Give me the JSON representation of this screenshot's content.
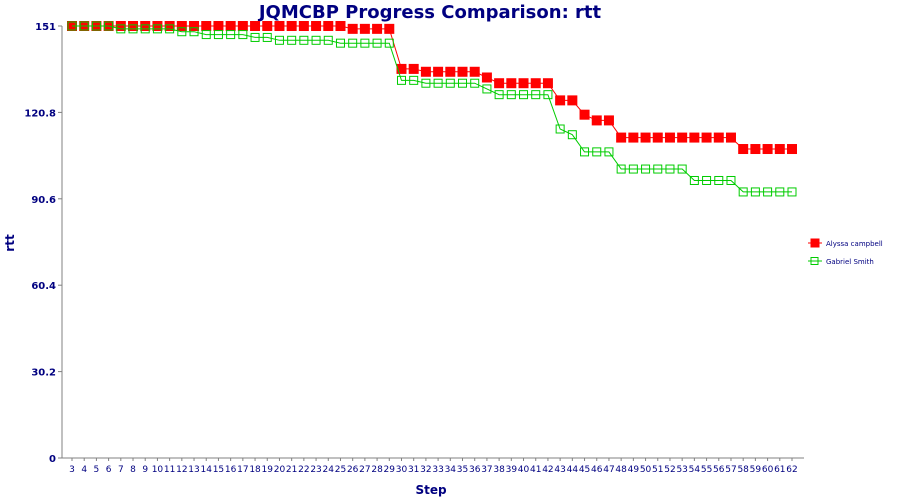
{
  "chart_data": {
    "type": "line",
    "title": "JQMCBP Progress Comparison: rtt",
    "xlabel": "Step",
    "ylabel": "rtt",
    "ylim": [
      0,
      151
    ],
    "yticks": [
      "0",
      "30.2",
      "60.4",
      "90.6",
      "120.8",
      "151"
    ],
    "x": [
      3,
      4,
      5,
      6,
      7,
      8,
      9,
      10,
      11,
      12,
      13,
      14,
      15,
      16,
      17,
      18,
      19,
      20,
      21,
      22,
      23,
      24,
      25,
      26,
      27,
      28,
      29,
      30,
      31,
      32,
      33,
      34,
      35,
      36,
      37,
      38,
      39,
      40,
      41,
      42,
      43,
      44,
      45,
      46,
      47,
      48,
      49,
      50,
      51,
      52,
      53,
      54,
      55,
      56,
      57,
      58,
      59,
      60,
      61,
      62
    ],
    "legend_position": "right",
    "grid": false,
    "series": [
      {
        "name": "Alyssa campbell",
        "color": "#ff0000",
        "marker": "filled-square",
        "values": [
          151,
          151,
          151,
          151,
          151,
          151,
          151,
          151,
          151,
          151,
          151,
          151,
          151,
          151,
          151,
          151,
          151,
          151,
          151,
          151,
          151,
          151,
          151,
          150,
          150,
          150,
          150,
          136,
          136,
          135,
          135,
          135,
          135,
          135,
          133,
          131,
          131,
          131,
          131,
          131,
          125,
          125,
          120,
          118,
          118,
          112,
          112,
          112,
          112,
          112,
          112,
          112,
          112,
          112,
          112,
          108,
          108,
          108,
          108,
          108
        ]
      },
      {
        "name": "Gabriel Smith",
        "color": "#00cc00",
        "marker": "hollow-square",
        "values": [
          151,
          151,
          151,
          151,
          150,
          150,
          150,
          150,
          150,
          149,
          149,
          148,
          148,
          148,
          148,
          147,
          147,
          146,
          146,
          146,
          146,
          146,
          145,
          145,
          145,
          145,
          145,
          132,
          132,
          131,
          131,
          131,
          131,
          131,
          129,
          127,
          127,
          127,
          127,
          127,
          115,
          113,
          107,
          107,
          107,
          101,
          101,
          101,
          101,
          101,
          101,
          97,
          97,
          97,
          97,
          93,
          93,
          93,
          93,
          93
        ]
      }
    ]
  }
}
